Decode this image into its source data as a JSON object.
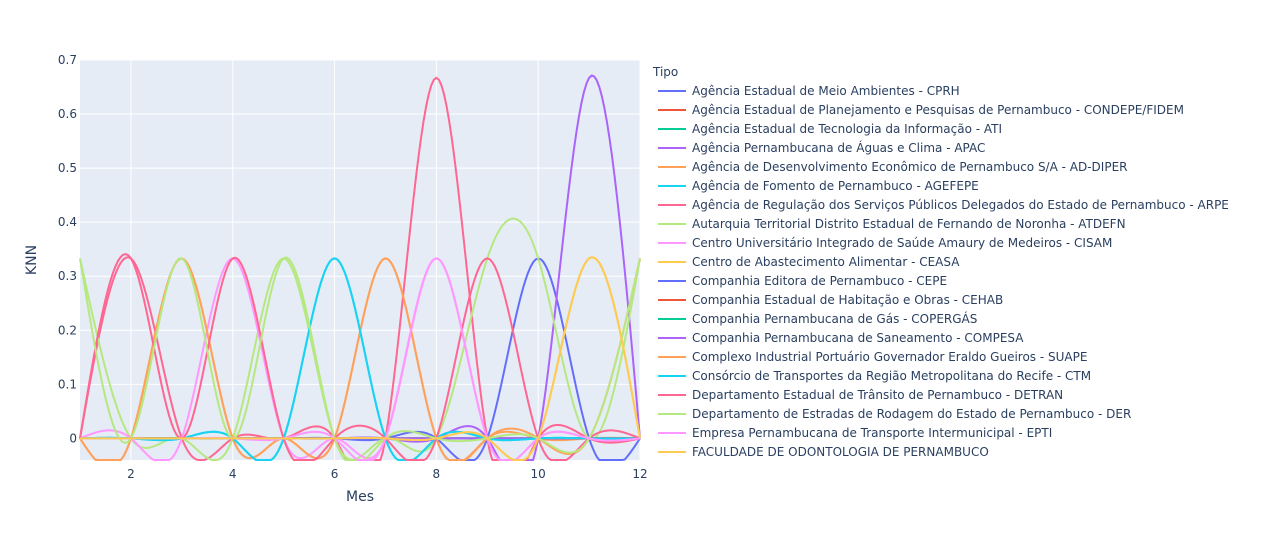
{
  "chart_data": {
    "type": "line",
    "xlabel": "Mes",
    "ylabel": "KNN",
    "xlim": [
      1,
      12
    ],
    "ylim": [
      -0.04,
      0.7
    ],
    "x_ticks": [
      2,
      4,
      6,
      8,
      10,
      12
    ],
    "y_ticks": [
      0,
      0.1,
      0.2,
      0.3,
      0.4,
      0.5,
      0.6,
      0.7
    ],
    "y_tick_labels": [
      "0",
      "0.1",
      "0.2",
      "0.3",
      "0.4",
      "0.5",
      "0.6",
      "0.7"
    ],
    "x": [
      1,
      2,
      3,
      4,
      5,
      6,
      7,
      8,
      9,
      10,
      11,
      12
    ],
    "grid": true,
    "legend": {
      "title": "Tipo",
      "placement": "right"
    },
    "series": [
      {
        "name": "Agência Estadual de Meio Ambientes - CPRH",
        "color": "#636efa",
        "values": [
          0,
          0,
          0,
          0,
          0,
          0,
          0,
          0,
          0,
          0.333,
          0,
          0
        ]
      },
      {
        "name": "Agência Estadual de Planejamento e Pesquisas de Pernambuco - CONDEPE/FIDEM",
        "color": "#EF553B",
        "values": [
          0,
          0,
          0,
          0,
          0,
          0,
          0,
          0,
          0,
          0,
          0,
          0
        ]
      },
      {
        "name": "Agência Estadual de Tecnologia da Informação - ATI",
        "color": "#00cc96",
        "values": [
          0,
          0,
          0,
          0,
          0,
          0,
          0,
          0,
          0,
          0,
          0,
          0
        ]
      },
      {
        "name": "Agência Pernambucana de Águas e Clima - APAC",
        "color": "#ab63fa",
        "values": [
          0,
          0,
          0,
          0,
          0,
          0,
          0,
          0,
          0,
          0,
          0.667,
          0
        ]
      },
      {
        "name": "Agência de Desenvolvimento Econômico de Pernambuco S/A - AD-DIPER",
        "color": "#FFA15A",
        "values": [
          0,
          0,
          0.333,
          0,
          0,
          0,
          0.333,
          0,
          0,
          0,
          0,
          0
        ]
      },
      {
        "name": "Agência de Fomento de Pernambuco - AGEFEPE",
        "color": "#19d3f3",
        "values": [
          0,
          0,
          0,
          0,
          0,
          0.333,
          0,
          0,
          0,
          0,
          0,
          0
        ]
      },
      {
        "name": "Agência de Regulação dos Serviços Públicos Delegados do Estado de Pernambuco - ARPE",
        "color": "#FF6692",
        "values": [
          0,
          0.333,
          0,
          0,
          0,
          0,
          0,
          0.667,
          0,
          0,
          0,
          0
        ]
      },
      {
        "name": "Autarquia Territorial Distrito Estadual de Fernando de Noronha - ATDEFN",
        "color": "#B6E880",
        "values": [
          0.333,
          0,
          0,
          0,
          0.333,
          0,
          0,
          0,
          0.333,
          0.333,
          0,
          0.333
        ]
      },
      {
        "name": "Centro Universitário Integrado de Saúde Amaury de Medeiros - CISAM",
        "color": "#FF97FF",
        "values": [
          0,
          0,
          0,
          0.333,
          0,
          0,
          0,
          0.333,
          0,
          0,
          0,
          0
        ]
      },
      {
        "name": "Centro de Abastecimento Alimentar - CEASA",
        "color": "#FECB52",
        "values": [
          0,
          0,
          0,
          0,
          0,
          0,
          0,
          0,
          0,
          0,
          0.333,
          0
        ]
      },
      {
        "name": "Companhia Editora de Pernambuco - CEPE",
        "color": "#636efa",
        "values": [
          0,
          0,
          0,
          0,
          0,
          0,
          0,
          0,
          0,
          0,
          0,
          0
        ]
      },
      {
        "name": "Companhia Estadual de Habitação e Obras - CEHAB",
        "color": "#EF553B",
        "values": [
          0,
          0,
          0,
          0,
          0,
          0,
          0,
          0,
          0,
          0,
          0,
          0
        ]
      },
      {
        "name": "Companhia Pernambucana de Gás - COPERGÁS",
        "color": "#00cc96",
        "values": [
          0,
          0,
          0,
          0,
          0,
          0,
          0,
          0,
          0,
          0,
          0,
          0
        ]
      },
      {
        "name": "Companhia Pernambucana de Saneamento - COMPESA",
        "color": "#ab63fa",
        "values": [
          0,
          0,
          0,
          0,
          0,
          0,
          0,
          0,
          0,
          0,
          0,
          0
        ]
      },
      {
        "name": "Complexo Industrial Portuário Governador Eraldo Gueiros - SUAPE",
        "color": "#FFA15A",
        "values": [
          0,
          0,
          0.333,
          0,
          0,
          0,
          0.333,
          0,
          0,
          0,
          0,
          0.333
        ]
      },
      {
        "name": "Consórcio de Transportes da Região Metropolitana do Recife - CTM",
        "color": "#19d3f3",
        "values": [
          0,
          0,
          0,
          0,
          0,
          0.333,
          0,
          0,
          0,
          0,
          0,
          0
        ]
      },
      {
        "name": "Departamento Estadual de Trânsito de Pernambuco - DETRAN",
        "color": "#FF6692",
        "values": [
          0,
          0.333,
          0,
          0.333,
          0,
          0,
          0,
          0,
          0.333,
          0,
          0,
          0
        ]
      },
      {
        "name": "Departamento de Estradas de Rodagem do Estado de Pernambuco - DER",
        "color": "#B6E880",
        "values": [
          0.333,
          0,
          0.333,
          0,
          0.333,
          0,
          0,
          0,
          0,
          0,
          0,
          0.333
        ]
      },
      {
        "name": "Empresa Pernambucana de Transporte Intermunicipal - EPTI",
        "color": "#FF97FF",
        "values": [
          0,
          0,
          0,
          0,
          0,
          0,
          0,
          0.333,
          0,
          0,
          0,
          0
        ]
      },
      {
        "name": "FACULDADE DE ODONTOLOGIA DE PERNAMBUCO",
        "color": "#FECB52",
        "values": [
          0,
          0,
          0,
          0,
          0,
          0,
          0,
          0,
          0,
          0,
          0.333,
          0
        ]
      }
    ]
  }
}
